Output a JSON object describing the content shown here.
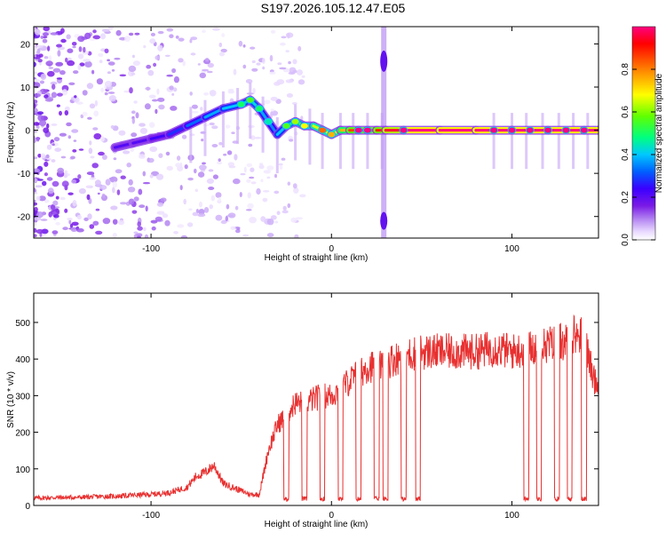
{
  "figure_title": "S197.2026.105.12.47.E05",
  "chart_data": [
    {
      "type": "heatmap",
      "title": "S197.2026.105.12.47.E05",
      "xlabel": "Height of straight line (km)",
      "ylabel": "Frequency (Hz)",
      "xlim": [
        -165,
        148
      ],
      "ylim": [
        -25,
        24
      ],
      "xticks": [
        -100,
        0,
        100
      ],
      "yticks": [
        -20,
        -10,
        0,
        10,
        20
      ],
      "colorbar": {
        "label": "Normalized spectral amplitude",
        "range": [
          0,
          1
        ],
        "ticks": [
          0.0,
          0.2,
          0.4,
          0.6,
          0.8
        ],
        "colormap": [
          "#ffffff",
          "#e8d8ff",
          "#b080f0",
          "#7a1ae6",
          "#3a00ff",
          "#0060ff",
          "#00c8ff",
          "#00ff80",
          "#60ff00",
          "#ffff00",
          "#ff8000",
          "#ff0000",
          "#ff0080"
        ]
      },
      "dominant_frequency_track": {
        "x": [
          -120,
          -110,
          -100,
          -90,
          -80,
          -70,
          -60,
          -50,
          -45,
          -40,
          -35,
          -30,
          -25,
          -20,
          -15,
          -10,
          -5,
          0,
          5,
          10,
          15,
          20,
          25,
          30,
          40,
          60,
          80,
          100,
          120,
          140,
          148
        ],
        "y": [
          -4,
          -3,
          -2,
          -1,
          1,
          3,
          5,
          6,
          7,
          5,
          2,
          -1,
          1,
          2,
          1,
          1,
          0,
          -1,
          0,
          0,
          0,
          0,
          0,
          0,
          0,
          0,
          0,
          0,
          0,
          0,
          0
        ],
        "amplitude": [
          0.3,
          0.3,
          0.3,
          0.35,
          0.4,
          0.45,
          0.5,
          0.5,
          0.55,
          0.5,
          0.45,
          0.45,
          0.55,
          0.6,
          0.65,
          0.7,
          0.75,
          0.7,
          0.75,
          0.85,
          0.9,
          0.9,
          0.9,
          0.9,
          1.0,
          1.0,
          1.0,
          1.0,
          1.0,
          1.0,
          1.0
        ]
      }
    },
    {
      "type": "line",
      "xlabel": "Height of straight line (km)",
      "ylabel": "SNR (10 * v/v)",
      "xlim": [
        -165,
        148
      ],
      "ylim": [
        0,
        580
      ],
      "xticks": [
        -100,
        0,
        100
      ],
      "yticks": [
        0,
        100,
        200,
        300,
        400,
        500
      ],
      "series": [
        {
          "name": "SNR",
          "color": "#e83030",
          "x": [
            -165,
            -150,
            -140,
            -130,
            -120,
            -110,
            -100,
            -90,
            -80,
            -75,
            -70,
            -65,
            -60,
            -55,
            -50,
            -45,
            -40,
            -35,
            -30,
            -25,
            -20,
            -15,
            -10,
            -5,
            0,
            5,
            10,
            15,
            20,
            25,
            30,
            35,
            40,
            45,
            50,
            60,
            70,
            80,
            90,
            100,
            110,
            120,
            130,
            135,
            140,
            145,
            148
          ],
          "y": [
            20,
            22,
            22,
            24,
            25,
            28,
            30,
            35,
            50,
            80,
            90,
            110,
            60,
            50,
            40,
            30,
            30,
            150,
            220,
            250,
            280,
            280,
            290,
            300,
            300,
            320,
            340,
            360,
            380,
            380,
            390,
            400,
            410,
            415,
            420,
            420,
            420,
            420,
            430,
            420,
            430,
            440,
            450,
            470,
            460,
            350,
            330
          ],
          "dropouts_x": [
            -25,
            -15,
            -5,
            5,
            15,
            25,
            30,
            40,
            48,
            108,
            115,
            125,
            132,
            140
          ]
        }
      ]
    }
  ]
}
